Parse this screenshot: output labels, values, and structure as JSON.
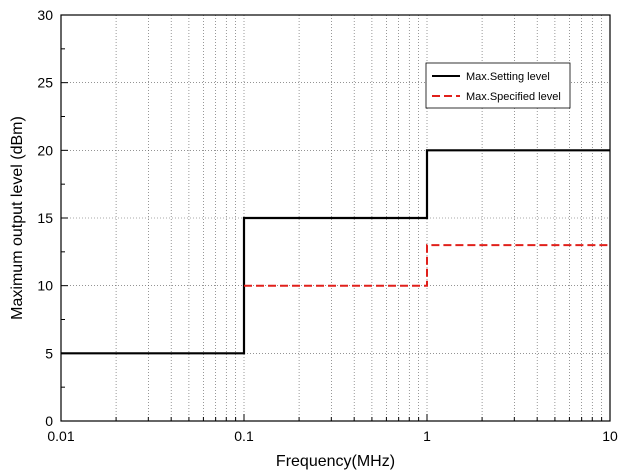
{
  "chart_data": {
    "type": "line",
    "xlabel": "Frequency(MHz)",
    "ylabel": "Maximum output level (dBm)",
    "xscale": "log",
    "xlim": [
      0.01,
      10
    ],
    "ylim": [
      0,
      30
    ],
    "x_ticks": [
      0.01,
      0.1,
      1,
      10
    ],
    "x_tick_labels": [
      "0.01",
      "0.1",
      "1",
      "10"
    ],
    "y_ticks": [
      0,
      5,
      10,
      15,
      20,
      25,
      30
    ],
    "y_tick_labels": [
      "0",
      "5",
      "10",
      "15",
      "20",
      "25",
      "30"
    ],
    "grid": true,
    "legend_position": "top-right",
    "series": [
      {
        "name": "Max.Setting level",
        "color": "#000000",
        "style": "solid",
        "x": [
          0.01,
          0.1,
          0.1,
          1,
          1,
          10
        ],
        "y": [
          5,
          5,
          15,
          15,
          20,
          20
        ]
      },
      {
        "name": "Max.Specified level",
        "color": "#e0201b",
        "style": "dashed",
        "x": [
          0.1,
          1,
          1,
          10
        ],
        "y": [
          10,
          10,
          13,
          13
        ]
      }
    ]
  }
}
